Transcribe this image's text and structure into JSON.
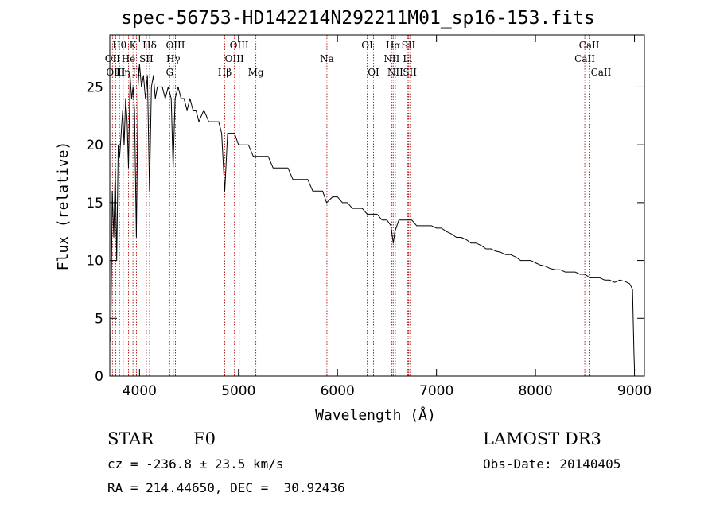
{
  "chart_data": {
    "type": "line",
    "title": "spec-56753-HD142214N292211M01_sp16-153.fits",
    "xlabel": "Wavelength (Å)",
    "ylabel": "Flux (relative)",
    "xlim": [
      3700,
      9100
    ],
    "ylim": [
      0,
      29.5
    ],
    "xticks": [
      4000,
      5000,
      6000,
      7000,
      8000,
      9000
    ],
    "yticks": [
      0,
      5,
      10,
      15,
      20,
      25
    ],
    "grid": false,
    "line_color": "#000000",
    "marker_color": "#b22222",
    "series": [
      {
        "x": [
          3710,
          3725,
          3740,
          3755,
          3770,
          3785,
          3800,
          3815,
          3830,
          3845,
          3860,
          3875,
          3889,
          3905,
          3920,
          3935,
          3950,
          3968,
          3985,
          4000,
          4020,
          4040,
          4060,
          4080,
          4101,
          4120,
          4140,
          4160,
          4180,
          4200,
          4230,
          4260,
          4290,
          4320,
          4340,
          4360,
          4390,
          4420,
          4450,
          4480,
          4510,
          4540,
          4570,
          4600,
          4650,
          4700,
          4750,
          4800,
          4830,
          4861,
          4890,
          4920,
          4960,
          5000,
          5050,
          5100,
          5150,
          5200,
          5250,
          5300,
          5350,
          5400,
          5450,
          5500,
          5550,
          5600,
          5650,
          5700,
          5750,
          5800,
          5850,
          5890,
          5950,
          6000,
          6050,
          6100,
          6150,
          6200,
          6250,
          6300,
          6350,
          6400,
          6450,
          6500,
          6540,
          6563,
          6580,
          6620,
          6660,
          6700,
          6750,
          6800,
          6850,
          6900,
          6950,
          7000,
          7050,
          7100,
          7150,
          7200,
          7250,
          7300,
          7350,
          7400,
          7450,
          7500,
          7550,
          7600,
          7650,
          7700,
          7750,
          7800,
          7850,
          7900,
          7950,
          8000,
          8050,
          8100,
          8150,
          8200,
          8250,
          8300,
          8350,
          8400,
          8450,
          8500,
          8550,
          8600,
          8650,
          8700,
          8750,
          8800,
          8850,
          8900,
          8950,
          8980,
          8995,
          9000
        ],
        "y": [
          3,
          16,
          12,
          18,
          10,
          20,
          19,
          21,
          23,
          20,
          24,
          22,
          18,
          26,
          24,
          25,
          23,
          12,
          25,
          27,
          25,
          26,
          24,
          26,
          16,
          25,
          26,
          24,
          25,
          25,
          25,
          24,
          25,
          24,
          18,
          24,
          25,
          24,
          24,
          23,
          24,
          23,
          23,
          22,
          23,
          22,
          22,
          22,
          21,
          16,
          21,
          21,
          21,
          20,
          20,
          20,
          19,
          19,
          19,
          19,
          18,
          18,
          18,
          18,
          17,
          17,
          17,
          17,
          16,
          16,
          16,
          15,
          15.5,
          15.5,
          15,
          15,
          14.5,
          14.5,
          14.5,
          14,
          14,
          14,
          13.5,
          13.5,
          13,
          11.5,
          12.5,
          13.5,
          13.5,
          13.5,
          13.5,
          13,
          13,
          13,
          13,
          12.8,
          12.8,
          12.5,
          12.3,
          12,
          12,
          11.8,
          11.5,
          11.5,
          11.3,
          11,
          11,
          10.8,
          10.7,
          10.5,
          10.5,
          10.3,
          10,
          10,
          10,
          9.8,
          9.6,
          9.5,
          9.3,
          9.2,
          9.2,
          9,
          9,
          9,
          8.8,
          8.8,
          8.5,
          8.5,
          8.5,
          8.3,
          8.3,
          8.1,
          8.3,
          8.2,
          8,
          7.5,
          2,
          0.5
        ]
      }
    ],
    "line_markers": [
      {
        "label": "Hθ",
        "x": 3798,
        "row": 0
      },
      {
        "label": "OII",
        "x": 3727,
        "row": 1
      },
      {
        "label": "OIII",
        "x": 3760,
        "row": 2
      },
      {
        "label": "K",
        "x": 3934,
        "row": 0
      },
      {
        "label": "He",
        "x": 3889,
        "row": 1
      },
      {
        "label": "Hη",
        "x": 3835,
        "row": 2
      },
      {
        "label": "Hδ",
        "x": 4102,
        "row": 0
      },
      {
        "label": "SII",
        "x": 4069,
        "row": 1
      },
      {
        "label": "H",
        "x": 3969,
        "row": 2
      },
      {
        "label": "OIII",
        "x": 4363,
        "row": 0
      },
      {
        "label": "Hγ",
        "x": 4341,
        "row": 1
      },
      {
        "label": "G",
        "x": 4305,
        "row": 2
      },
      {
        "label": "OIII",
        "x": 5007,
        "row": 0
      },
      {
        "label": "OIII",
        "x": 4959,
        "row": 1
      },
      {
        "label": "Hβ",
        "x": 4861,
        "row": 2
      },
      {
        "label": "Mg",
        "x": 5175,
        "row": 2
      },
      {
        "label": "Na",
        "x": 5893,
        "row": 1
      },
      {
        "label": "OI",
        "x": 6300,
        "row": 0
      },
      {
        "label": "OI",
        "x": 6364,
        "row": 2
      },
      {
        "label": "Hα",
        "x": 6563,
        "row": 0
      },
      {
        "label": "NII",
        "x": 6548,
        "row": 1
      },
      {
        "label": "NII",
        "x": 6584,
        "row": 2
      },
      {
        "label": "SII",
        "x": 6717,
        "row": 0
      },
      {
        "label": "Li",
        "x": 6708,
        "row": 1
      },
      {
        "label": "SII",
        "x": 6731,
        "row": 2
      },
      {
        "label": "CaII",
        "x": 8542,
        "row": 0
      },
      {
        "label": "CaII",
        "x": 8498,
        "row": 1
      },
      {
        "label": "CaII",
        "x": 8662,
        "row": 2
      }
    ]
  },
  "info": {
    "object_class": "STAR",
    "subclass": "F0",
    "survey": "LAMOST DR3",
    "velocity": "cz = -236.8 ± 23.5 km/s",
    "obs_date": "Obs-Date: 20140405",
    "coordinates": "RA = 214.44650, DEC =  30.92436"
  }
}
